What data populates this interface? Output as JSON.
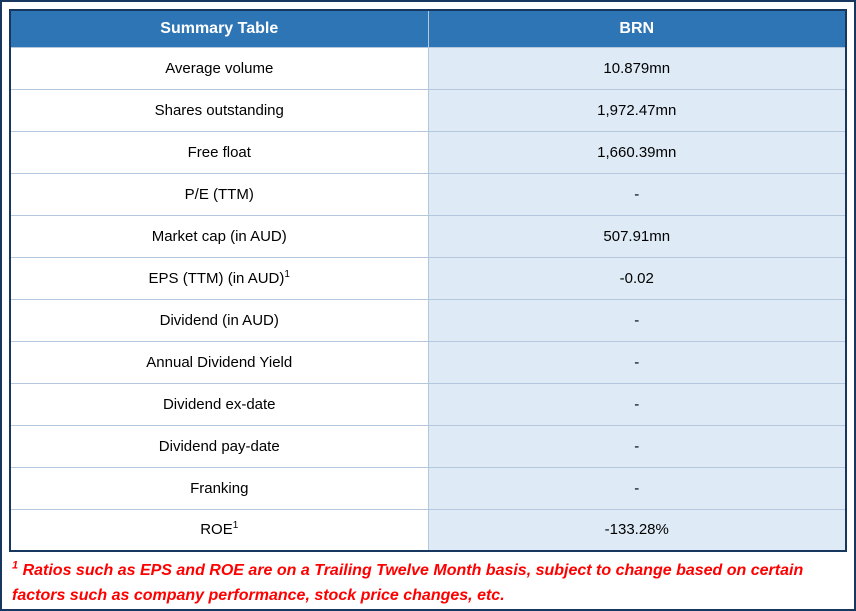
{
  "colors": {
    "header_bg": "#2E75B6",
    "header_text": "#FFFFFF",
    "label_column_bg": "#FFFFFF",
    "value_column_bg": "#DEEBF7",
    "outer_border": "#17375E",
    "cell_border": "#B4C7DC",
    "footnote_text": "#FF0000"
  },
  "table": {
    "header": {
      "metric_column": "Summary Table",
      "value_column": "BRN"
    },
    "rows": [
      {
        "label": "Average volume",
        "value": "10.879mn"
      },
      {
        "label": "Shares outstanding",
        "value": "1,972.47mn"
      },
      {
        "label": "Free float",
        "value": "1,660.39mn"
      },
      {
        "label": "P/E (TTM)",
        "value": "-"
      },
      {
        "label": "Market cap (in AUD)",
        "value": "507.91mn"
      },
      {
        "label": "EPS (TTM) (in AUD)",
        "sup": "1",
        "value": "-0.02"
      },
      {
        "label": "Dividend (in AUD)",
        "value": "-"
      },
      {
        "label": "Annual Dividend Yield",
        "value": "-"
      },
      {
        "label": "Dividend ex-date",
        "value": "-"
      },
      {
        "label": "Dividend pay-date",
        "value": "-"
      },
      {
        "label": "Franking",
        "value": "-"
      },
      {
        "label": "ROE",
        "sup": "1",
        "value": "-133.28%"
      }
    ]
  },
  "footnote": {
    "sup": "1",
    "text": " Ratios such as EPS and ROE are on a Trailing Twelve Month basis, subject to change based on certain factors such as company performance, stock price changes, etc."
  },
  "chart_data": {
    "type": "table",
    "title": "Summary Table",
    "columns": [
      "Summary Table",
      "BRN"
    ],
    "rows": [
      [
        "Average volume",
        "10.879mn"
      ],
      [
        "Shares outstanding",
        "1,972.47mn"
      ],
      [
        "Free float",
        "1,660.39mn"
      ],
      [
        "P/E (TTM)",
        "-"
      ],
      [
        "Market cap (in AUD)",
        "507.91mn"
      ],
      [
        "EPS (TTM) (in AUD)^1",
        "-0.02"
      ],
      [
        "Dividend (in AUD)",
        "-"
      ],
      [
        "Annual Dividend Yield",
        "-"
      ],
      [
        "Dividend ex-date",
        "-"
      ],
      [
        "Dividend pay-date",
        "-"
      ],
      [
        "Franking",
        "-"
      ],
      [
        "ROE^1",
        "-133.28%"
      ]
    ],
    "footnote": "1 Ratios such as EPS and ROE are on a Trailing Twelve Month basis, subject to change based on certain factors such as company performance, stock price changes, etc."
  }
}
